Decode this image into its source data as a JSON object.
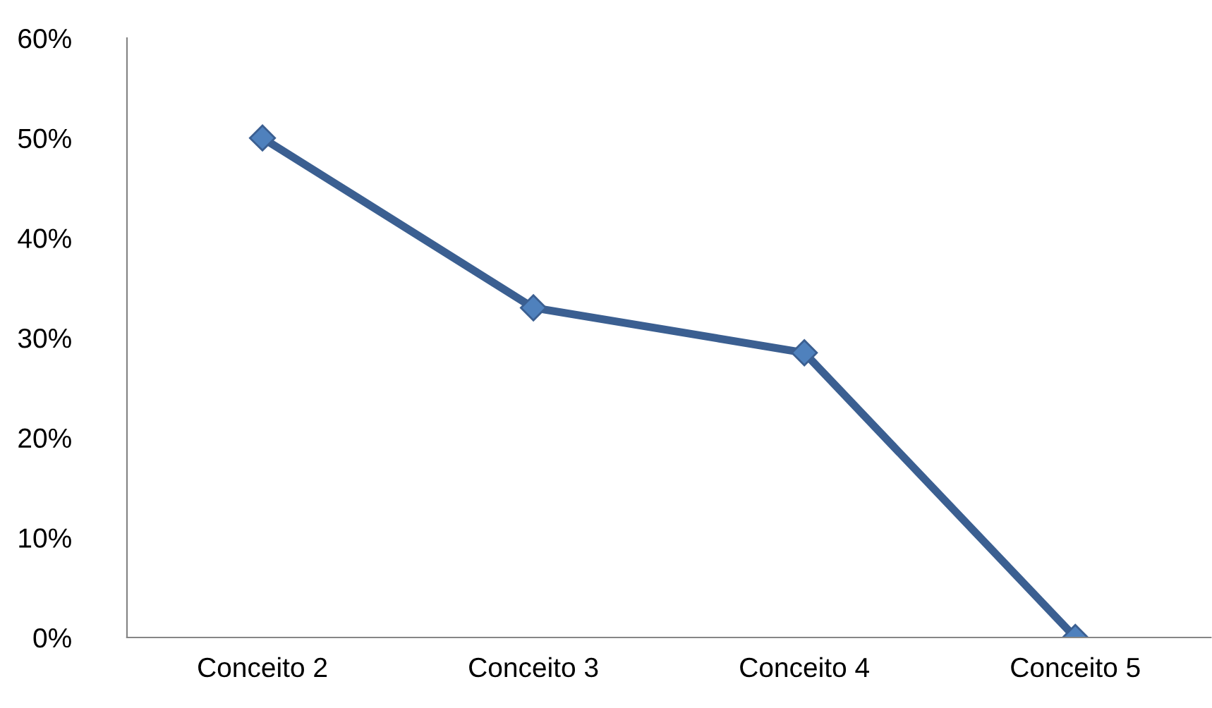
{
  "chart_data": {
    "type": "line",
    "categories": [
      "Conceito 2",
      "Conceito 3",
      "Conceito 4",
      "Conceito 5"
    ],
    "series": [
      {
        "color": "#3b5f91",
        "values": [
          50,
          33,
          28.5,
          0
        ]
      }
    ],
    "marker": "diamond",
    "line_style": "solid",
    "grid": false,
    "legend": false,
    "ylim": [
      0,
      60
    ],
    "yticks": [
      {
        "value": 0,
        "label": "0%"
      },
      {
        "value": 10,
        "label": "10%"
      },
      {
        "value": 20,
        "label": "20%"
      },
      {
        "value": 30,
        "label": "30%"
      },
      {
        "value": 40,
        "label": "40%"
      },
      {
        "value": 50,
        "label": "50%"
      },
      {
        "value": 60,
        "label": "60%"
      }
    ]
  }
}
